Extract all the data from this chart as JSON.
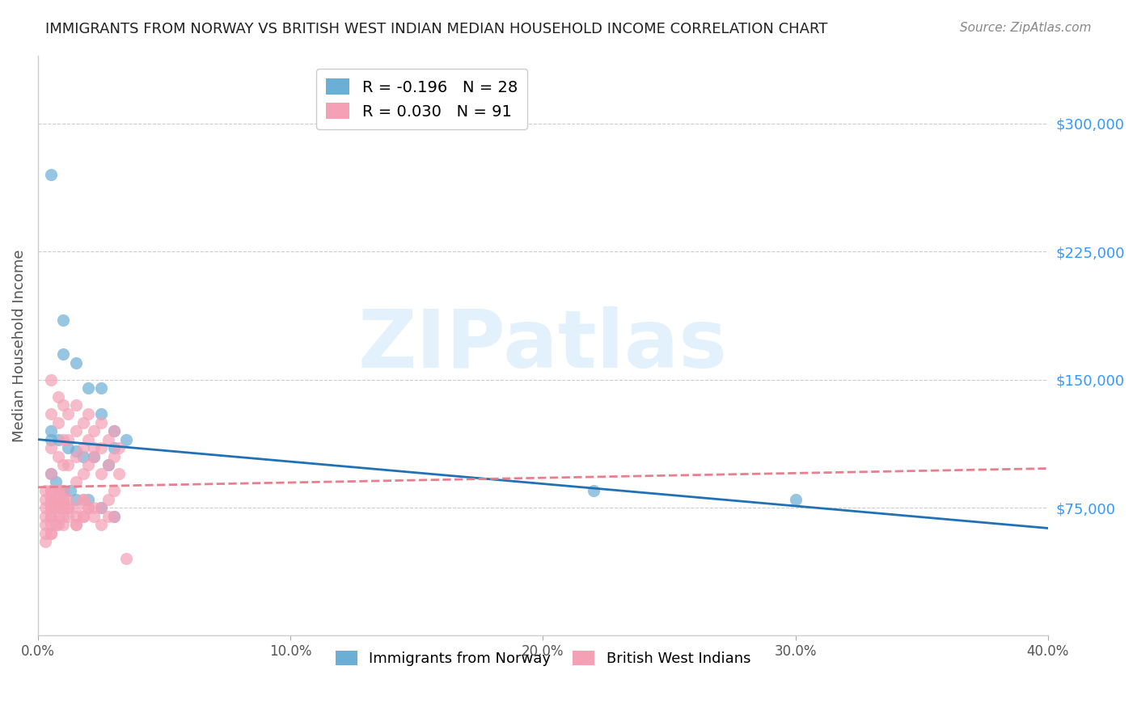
{
  "title": "IMMIGRANTS FROM NORWAY VS BRITISH WEST INDIAN MEDIAN HOUSEHOLD INCOME CORRELATION CHART",
  "source": "Source: ZipAtlas.com",
  "ylabel": "Median Household Income",
  "xlim": [
    0.0,
    0.4
  ],
  "ylim": [
    0,
    340000
  ],
  "xticks": [
    0.0,
    0.1,
    0.2,
    0.3,
    0.4
  ],
  "xtick_labels": [
    "0.0%",
    "10.0%",
    "20.0%",
    "30.0%",
    "40.0%"
  ],
  "yticks_right": [
    75000,
    150000,
    225000,
    300000
  ],
  "ytick_labels_right": [
    "$75,000",
    "$150,000",
    "$225,000",
    "$300,000"
  ],
  "norway_color": "#6baed6",
  "bwi_color": "#f4a0b5",
  "norway_line_color": "#2171b5",
  "bwi_line_color": "#e87e8e",
  "norway_R": -0.196,
  "norway_N": 28,
  "bwi_R": 0.03,
  "bwi_N": 91,
  "norway_scatter_x": [
    0.005,
    0.01,
    0.01,
    0.015,
    0.02,
    0.025,
    0.025,
    0.03,
    0.03,
    0.035,
    0.005,
    0.008,
    0.012,
    0.018,
    0.022,
    0.028,
    0.005,
    0.007,
    0.01,
    0.013,
    0.015,
    0.02,
    0.025,
    0.03,
    0.22,
    0.3,
    0.005,
    0.015
  ],
  "norway_scatter_y": [
    270000,
    185000,
    165000,
    160000,
    145000,
    145000,
    130000,
    120000,
    110000,
    115000,
    120000,
    115000,
    110000,
    105000,
    105000,
    100000,
    95000,
    90000,
    85000,
    85000,
    80000,
    80000,
    75000,
    70000,
    85000,
    80000,
    115000,
    108000
  ],
  "bwi_scatter_x": [
    0.005,
    0.005,
    0.005,
    0.005,
    0.005,
    0.008,
    0.008,
    0.008,
    0.01,
    0.01,
    0.01,
    0.01,
    0.012,
    0.012,
    0.012,
    0.015,
    0.015,
    0.015,
    0.015,
    0.018,
    0.018,
    0.018,
    0.02,
    0.02,
    0.02,
    0.022,
    0.022,
    0.025,
    0.025,
    0.025,
    0.028,
    0.028,
    0.03,
    0.03,
    0.032,
    0.032,
    0.005,
    0.005,
    0.005,
    0.008,
    0.008,
    0.01,
    0.01,
    0.012,
    0.012,
    0.015,
    0.015,
    0.018,
    0.018,
    0.02,
    0.005,
    0.005,
    0.008,
    0.008,
    0.01,
    0.012,
    0.015,
    0.018,
    0.02,
    0.022,
    0.025,
    0.028,
    0.003,
    0.003,
    0.003,
    0.003,
    0.003,
    0.003,
    0.003,
    0.005,
    0.005,
    0.005,
    0.005,
    0.005,
    0.007,
    0.007,
    0.007,
    0.008,
    0.008,
    0.01,
    0.01,
    0.012,
    0.015,
    0.018,
    0.022,
    0.025,
    0.03,
    0.03,
    0.028,
    0.035,
    0.022
  ],
  "bwi_scatter_y": [
    150000,
    130000,
    110000,
    95000,
    80000,
    140000,
    125000,
    105000,
    135000,
    115000,
    100000,
    85000,
    130000,
    115000,
    100000,
    135000,
    120000,
    105000,
    90000,
    125000,
    110000,
    95000,
    130000,
    115000,
    100000,
    120000,
    105000,
    125000,
    110000,
    95000,
    115000,
    100000,
    120000,
    105000,
    110000,
    95000,
    75000,
    70000,
    65000,
    80000,
    70000,
    75000,
    65000,
    80000,
    70000,
    75000,
    65000,
    80000,
    70000,
    75000,
    85000,
    60000,
    85000,
    65000,
    80000,
    75000,
    70000,
    80000,
    75000,
    70000,
    75000,
    70000,
    85000,
    80000,
    75000,
    70000,
    65000,
    60000,
    55000,
    85000,
    80000,
    75000,
    70000,
    60000,
    80000,
    75000,
    65000,
    85000,
    75000,
    80000,
    70000,
    75000,
    65000,
    70000,
    75000,
    65000,
    85000,
    70000,
    80000,
    45000,
    110000
  ],
  "norway_trend_x": [
    0.0,
    0.4
  ],
  "norway_trend_y": [
    115000,
    63000
  ],
  "bwi_trend_x": [
    0.0,
    0.4
  ],
  "bwi_trend_y": [
    87000,
    98000
  ],
  "watermark": "ZIPatlas",
  "background_color": "#ffffff",
  "grid_color": "#cccccc"
}
